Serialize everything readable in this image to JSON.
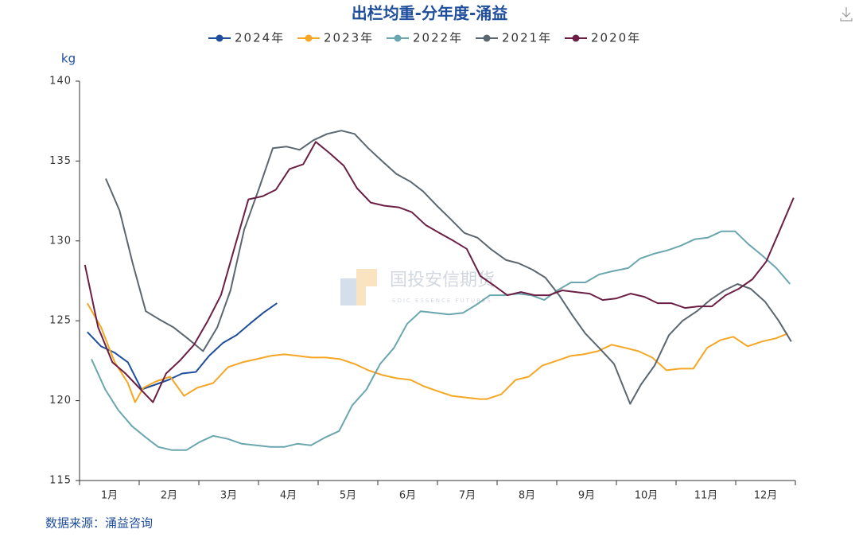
{
  "chart_data": {
    "type": "line",
    "title": "出栏均重-分年度-涌益",
    "y_label": "kg",
    "source": "数据来源：涌益咨询",
    "watermark": "国投安信期货",
    "watermark_sub": "SDIC ESSENCE FUTURES",
    "xlim": [
      0,
      12
    ],
    "xminorticks": [
      0,
      1,
      2,
      3,
      4,
      5,
      6,
      7,
      8,
      9,
      10,
      11,
      12
    ],
    "xticks": [
      {
        "value": 0.5,
        "label": "1月"
      },
      {
        "value": 1.5,
        "label": "2月"
      },
      {
        "value": 2.5,
        "label": "3月"
      },
      {
        "value": 3.5,
        "label": "4月"
      },
      {
        "value": 4.5,
        "label": "5月"
      },
      {
        "value": 5.5,
        "label": "6月"
      },
      {
        "value": 6.5,
        "label": "7月"
      },
      {
        "value": 7.5,
        "label": "8月"
      },
      {
        "value": 8.5,
        "label": "9月"
      },
      {
        "value": 9.5,
        "label": "10月"
      },
      {
        "value": 10.5,
        "label": "11月"
      },
      {
        "value": 11.5,
        "label": "12月"
      }
    ],
    "ylim": [
      115,
      140
    ],
    "yticks": [
      115,
      120,
      125,
      130,
      135,
      140
    ],
    "legend": "top",
    "series": [
      {
        "name": "2024年",
        "color": "#1f4e9c",
        "x": [
          0.13,
          0.36,
          0.59,
          0.81,
          1.04,
          1.27,
          1.49,
          1.72,
          1.95,
          2.17,
          2.4,
          2.63,
          2.85,
          3.08,
          3.31
        ],
        "values": [
          124.3,
          123.4,
          123.0,
          122.4,
          120.7,
          121.0,
          121.3,
          121.7,
          121.8,
          122.8,
          123.6,
          124.1,
          124.8,
          125.5,
          126.1
        ]
      },
      {
        "name": "2023年",
        "color": "#f5a623",
        "x": [
          0.13,
          0.36,
          0.59,
          0.81,
          0.93,
          1.07,
          1.28,
          1.52,
          1.75,
          1.97,
          2.24,
          2.49,
          2.73,
          2.97,
          3.2,
          3.43,
          3.67,
          3.89,
          4.13,
          4.37,
          4.61,
          4.84,
          5.08,
          5.32,
          5.55,
          5.77,
          6.0,
          6.24,
          6.47,
          6.71,
          6.83,
          7.07,
          7.31,
          7.53,
          7.76,
          8.0,
          8.23,
          8.45,
          8.69,
          8.92,
          9.15,
          9.37,
          9.6,
          9.84,
          10.07,
          10.29,
          10.52,
          10.75,
          10.96,
          11.2,
          11.44,
          11.67,
          11.87
        ],
        "values": [
          126.1,
          124.6,
          122.4,
          121.1,
          119.9,
          120.8,
          121.2,
          121.5,
          120.3,
          120.8,
          121.1,
          122.1,
          122.4,
          122.6,
          122.8,
          122.9,
          122.8,
          122.7,
          122.7,
          122.6,
          122.3,
          121.9,
          121.6,
          121.4,
          121.3,
          120.9,
          120.6,
          120.3,
          120.2,
          120.1,
          120.1,
          120.4,
          121.3,
          121.5,
          122.2,
          122.5,
          122.8,
          122.9,
          123.1,
          123.5,
          123.3,
          123.1,
          122.7,
          121.9,
          122.0,
          122.0,
          123.3,
          123.8,
          124.0,
          123.4,
          123.7,
          123.9,
          124.2
        ]
      },
      {
        "name": "2022年",
        "color": "#6aa6ae",
        "x": [
          0.2,
          0.43,
          0.65,
          0.88,
          1.11,
          1.32,
          1.55,
          1.79,
          2.01,
          2.24,
          2.49,
          2.72,
          2.96,
          3.2,
          3.43,
          3.65,
          3.88,
          4.12,
          4.35,
          4.57,
          4.81,
          5.04,
          5.27,
          5.49,
          5.72,
          5.96,
          6.19,
          6.43,
          6.65,
          6.88,
          7.12,
          7.35,
          7.57,
          7.79,
          8.01,
          8.24,
          8.48,
          8.71,
          8.93,
          9.2,
          9.4,
          9.63,
          9.85,
          10.08,
          10.31,
          10.53,
          10.76,
          10.99,
          11.21,
          11.44,
          11.68,
          11.91
        ],
        "values": [
          122.6,
          120.7,
          119.4,
          118.4,
          117.7,
          117.1,
          116.9,
          116.9,
          117.4,
          117.8,
          117.6,
          117.3,
          117.2,
          117.1,
          117.1,
          117.3,
          117.2,
          117.7,
          118.1,
          119.7,
          120.7,
          122.3,
          123.3,
          124.8,
          125.6,
          125.5,
          125.4,
          125.5,
          126.0,
          126.6,
          126.6,
          126.7,
          126.6,
          126.3,
          126.9,
          127.4,
          127.4,
          127.9,
          128.1,
          128.3,
          128.9,
          129.2,
          129.4,
          129.7,
          130.1,
          130.2,
          130.6,
          130.6,
          129.8,
          129.1,
          128.3,
          127.3
        ]
      },
      {
        "name": "2021年",
        "color": "#5b6770",
        "x": [
          0.44,
          0.67,
          0.89,
          1.11,
          1.33,
          1.57,
          1.81,
          2.07,
          2.31,
          2.53,
          2.76,
          3.01,
          3.24,
          3.47,
          3.69,
          3.92,
          4.15,
          4.39,
          4.61,
          4.84,
          5.07,
          5.31,
          5.55,
          5.76,
          5.99,
          6.21,
          6.45,
          6.67,
          6.89,
          7.15,
          7.36,
          7.59,
          7.81,
          8.04,
          8.27,
          8.48,
          8.71,
          8.96,
          9.23,
          9.41,
          9.64,
          9.88,
          10.11,
          10.35,
          10.57,
          10.81,
          11.03,
          11.25,
          11.49,
          11.72,
          11.93
        ],
        "values": [
          133.9,
          131.9,
          128.6,
          125.6,
          125.1,
          124.6,
          123.9,
          123.1,
          124.6,
          126.9,
          130.7,
          133.3,
          135.8,
          135.9,
          135.7,
          136.3,
          136.7,
          136.9,
          136.7,
          135.8,
          135.0,
          134.2,
          133.7,
          133.1,
          132.2,
          131.4,
          130.5,
          130.2,
          129.5,
          128.8,
          128.6,
          128.2,
          127.7,
          126.6,
          125.3,
          124.2,
          123.3,
          122.3,
          119.8,
          121.0,
          122.2,
          124.1,
          125.0,
          125.6,
          126.3,
          126.9,
          127.3,
          127.0,
          126.2,
          125.0,
          123.7
        ]
      },
      {
        "name": "2020年",
        "color": "#6b1f45",
        "x": [
          0.09,
          0.31,
          0.55,
          0.77,
          1.0,
          1.23,
          1.45,
          1.68,
          1.92,
          2.15,
          2.37,
          2.6,
          2.83,
          3.07,
          3.29,
          3.52,
          3.75,
          3.96,
          4.19,
          4.43,
          4.65,
          4.88,
          5.11,
          5.35,
          5.57,
          5.8,
          6.03,
          6.27,
          6.49,
          6.72,
          6.95,
          7.17,
          7.4,
          7.63,
          7.87,
          8.09,
          8.32,
          8.55,
          8.77,
          9.0,
          9.24,
          9.47,
          9.69,
          9.92,
          10.15,
          10.37,
          10.6,
          10.83,
          11.05,
          11.28,
          11.51,
          11.73,
          11.97
        ],
        "values": [
          128.5,
          124.6,
          122.4,
          121.7,
          120.8,
          119.9,
          121.7,
          122.5,
          123.5,
          125.0,
          126.6,
          129.6,
          132.6,
          132.8,
          133.2,
          134.5,
          134.8,
          136.2,
          135.5,
          134.7,
          133.3,
          132.4,
          132.2,
          132.1,
          131.8,
          131.0,
          130.5,
          130.0,
          129.5,
          127.8,
          127.2,
          126.6,
          126.8,
          126.6,
          126.6,
          126.9,
          126.8,
          126.7,
          126.3,
          126.4,
          126.7,
          126.5,
          126.1,
          126.1,
          125.8,
          125.9,
          125.9,
          126.6,
          127.0,
          127.6,
          128.7,
          130.6,
          132.7
        ]
      }
    ]
  }
}
